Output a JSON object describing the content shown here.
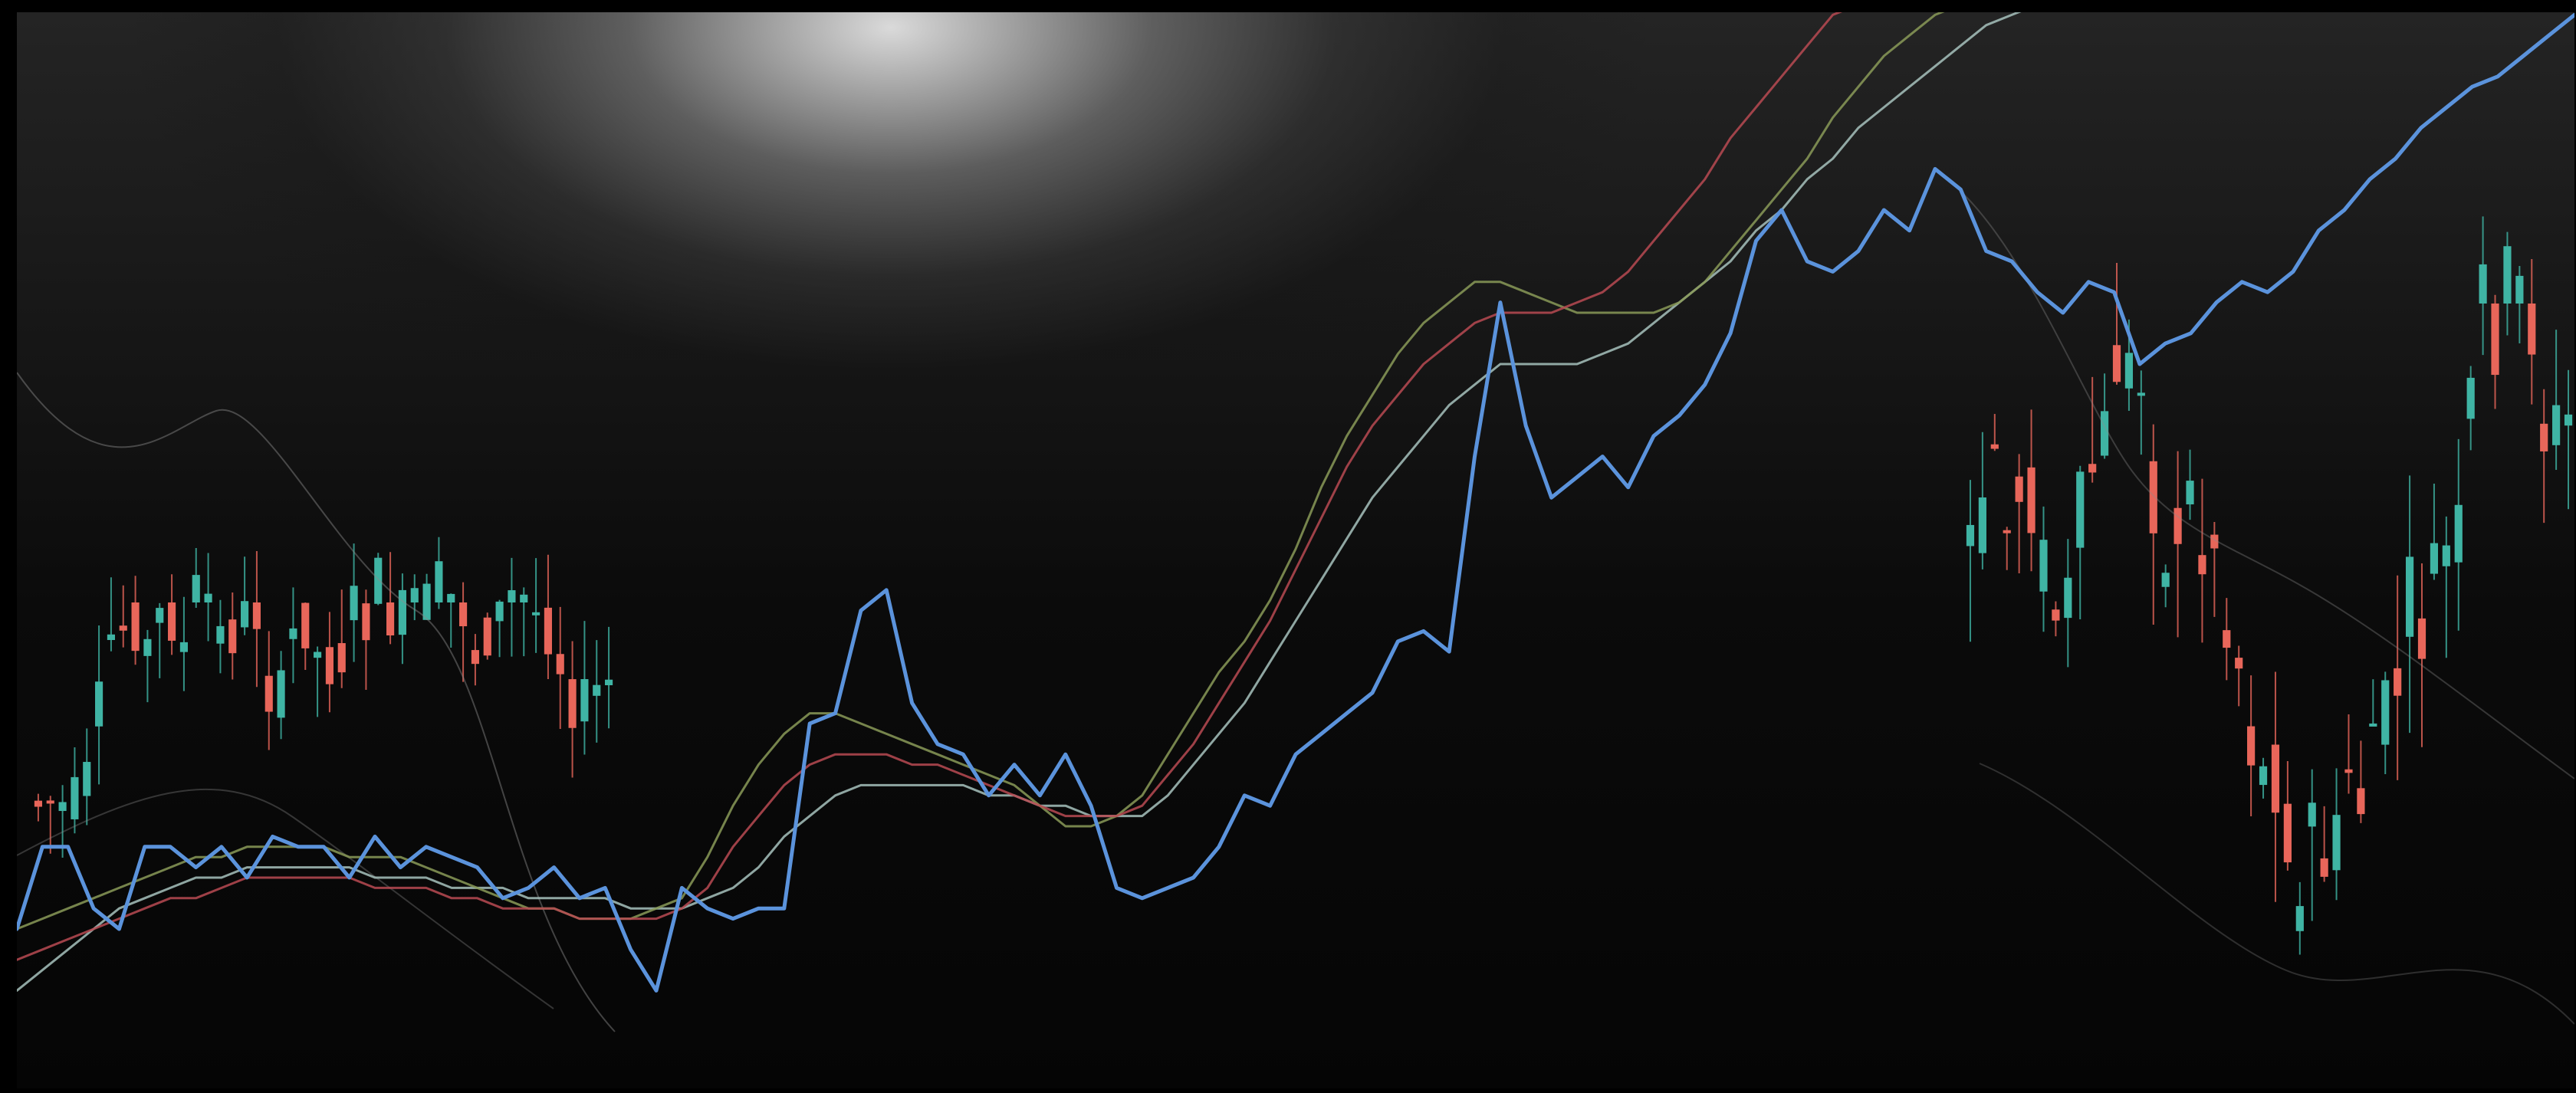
{
  "chart_data": {
    "type": "line",
    "title": "",
    "xlabel": "",
    "ylabel": "",
    "grid": false,
    "legend": "none",
    "ylim": [
      0,
      100
    ],
    "x": [
      0,
      1,
      2,
      3,
      4,
      5,
      6,
      7,
      8,
      9,
      10,
      11,
      12,
      13,
      14,
      15,
      16,
      17,
      18,
      19,
      20,
      21,
      22,
      23,
      24,
      25,
      26,
      27,
      28,
      29,
      30,
      31,
      32,
      33,
      34,
      35,
      36,
      37,
      38,
      39,
      40,
      41,
      42,
      43,
      44,
      45,
      46,
      47,
      48,
      49,
      50,
      51,
      52,
      53,
      54,
      55,
      56,
      57,
      58,
      59,
      60,
      61,
      62,
      63,
      64,
      65,
      66,
      67,
      68,
      69,
      70,
      71,
      72,
      73,
      74,
      75,
      76,
      77,
      78,
      79,
      80,
      81,
      82,
      83,
      84,
      85,
      86,
      87,
      88,
      89,
      90,
      91,
      92,
      93,
      94,
      95,
      96,
      97,
      98,
      99,
      100
    ],
    "series": [
      {
        "name": "",
        "color": "#5b93dc",
        "values": [
          10,
          18,
          18,
          12,
          10,
          18,
          18,
          16,
          18,
          15,
          19,
          18,
          18,
          15,
          19,
          16,
          18,
          17,
          16,
          13,
          14,
          16,
          13,
          14,
          8,
          4,
          14,
          12,
          11,
          12,
          12,
          30,
          31,
          41,
          43,
          32,
          28,
          27,
          23,
          26,
          23,
          27,
          22,
          14,
          13,
          14,
          15,
          18,
          23,
          22,
          27,
          29,
          31,
          33,
          38,
          39,
          37,
          56,
          71,
          59,
          52,
          54,
          56,
          53,
          58,
          60,
          63,
          68,
          77,
          80,
          75,
          74,
          76,
          80,
          78,
          84,
          82,
          76,
          75,
          72,
          70,
          73,
          72,
          65,
          67,
          68,
          71,
          73,
          72,
          74,
          78,
          80,
          83,
          85,
          88,
          90,
          92,
          93,
          95,
          97,
          99
        ]
      },
      {
        "name": "",
        "color": "#8a9a58",
        "values": [
          10,
          11,
          12,
          13,
          14,
          15,
          16,
          17,
          17,
          18,
          18,
          18,
          18,
          17,
          17,
          17,
          16,
          15,
          14,
          13,
          12,
          12,
          11,
          11,
          11,
          12,
          13,
          17,
          22,
          26,
          29,
          31,
          31,
          30,
          29,
          28,
          27,
          26,
          25,
          24,
          22,
          20,
          20,
          21,
          23,
          27,
          31,
          35,
          38,
          42,
          47,
          53,
          58,
          62,
          66,
          69,
          71,
          73,
          73,
          72,
          71,
          70,
          70,
          70,
          70,
          71,
          73,
          76,
          79,
          82,
          85,
          89,
          92,
          95,
          97,
          99,
          100,
          100,
          100,
          100,
          100,
          100,
          100,
          100,
          100,
          100,
          100,
          100,
          100,
          100,
          100,
          100,
          100,
          100,
          100,
          100,
          100,
          100,
          100,
          100,
          100
        ]
      },
      {
        "name": "",
        "color": "#b84a52",
        "values": [
          7,
          8,
          9,
          10,
          11,
          12,
          13,
          13,
          14,
          15,
          15,
          15,
          15,
          15,
          14,
          14,
          14,
          13,
          13,
          12,
          12,
          12,
          11,
          11,
          11,
          11,
          12,
          14,
          18,
          21,
          24,
          26,
          27,
          27,
          27,
          26,
          26,
          25,
          24,
          23,
          22,
          21,
          21,
          21,
          22,
          25,
          28,
          32,
          36,
          40,
          45,
          50,
          55,
          59,
          62,
          65,
          67,
          69,
          70,
          70,
          70,
          71,
          72,
          74,
          77,
          80,
          83,
          87,
          90,
          93,
          96,
          99,
          100,
          100,
          100,
          100,
          100,
          100,
          100,
          100,
          100,
          100,
          100,
          100,
          100,
          100,
          100,
          100,
          100,
          100,
          100,
          100,
          100,
          100,
          100,
          100,
          100,
          100,
          100,
          100,
          100
        ]
      },
      {
        "name": "",
        "color": "#a7c2bd",
        "values": [
          4,
          6,
          8,
          10,
          12,
          13,
          14,
          15,
          15,
          16,
          16,
          16,
          16,
          16,
          15,
          15,
          15,
          14,
          14,
          14,
          13,
          13,
          13,
          13,
          12,
          12,
          12,
          13,
          14,
          16,
          19,
          21,
          23,
          24,
          24,
          24,
          24,
          24,
          23,
          23,
          22,
          22,
          21,
          21,
          21,
          23,
          26,
          29,
          32,
          36,
          40,
          44,
          48,
          52,
          55,
          58,
          61,
          63,
          65,
          65,
          65,
          65,
          66,
          67,
          69,
          71,
          73,
          75,
          78,
          80,
          83,
          85,
          88,
          90,
          92,
          94,
          96,
          98,
          99,
          100,
          100,
          100,
          100,
          100,
          100,
          100,
          100,
          100,
          100,
          100,
          100,
          100,
          100,
          100,
          100,
          100,
          100,
          100,
          100,
          100,
          100
        ]
      }
    ]
  }
}
